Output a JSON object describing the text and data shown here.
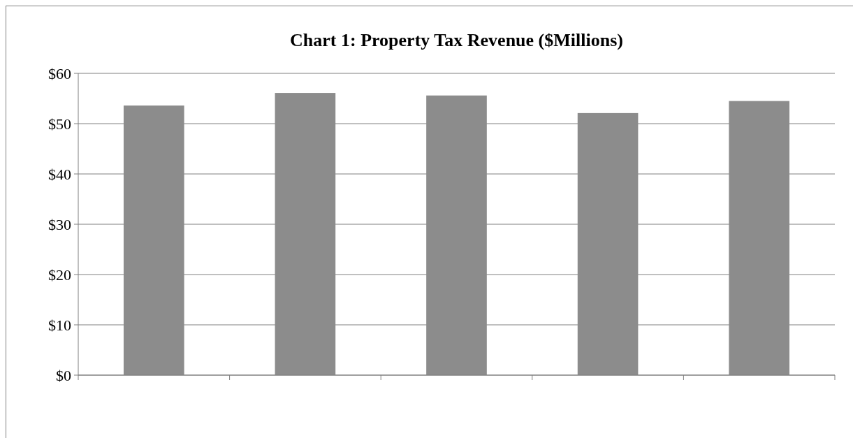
{
  "chart_data": {
    "type": "bar",
    "title": "Chart 1: Property Tax Revenue ($Millions)",
    "categories": [
      null,
      null,
      null,
      null,
      null
    ],
    "values": [
      53.6,
      56.1,
      55.6,
      52.1,
      54.5
    ],
    "color": "#8c8c8c",
    "ylim": [
      0,
      60
    ],
    "yticks": [
      {
        "value": 0,
        "label": "$0"
      },
      {
        "value": 10,
        "label": "$10"
      },
      {
        "value": 20,
        "label": "$20"
      },
      {
        "value": 30,
        "label": "$30"
      },
      {
        "value": 40,
        "label": "$40"
      },
      {
        "value": 50,
        "label": "$50"
      },
      {
        "value": 60,
        "label": "$60"
      }
    ],
    "grid": "y"
  }
}
